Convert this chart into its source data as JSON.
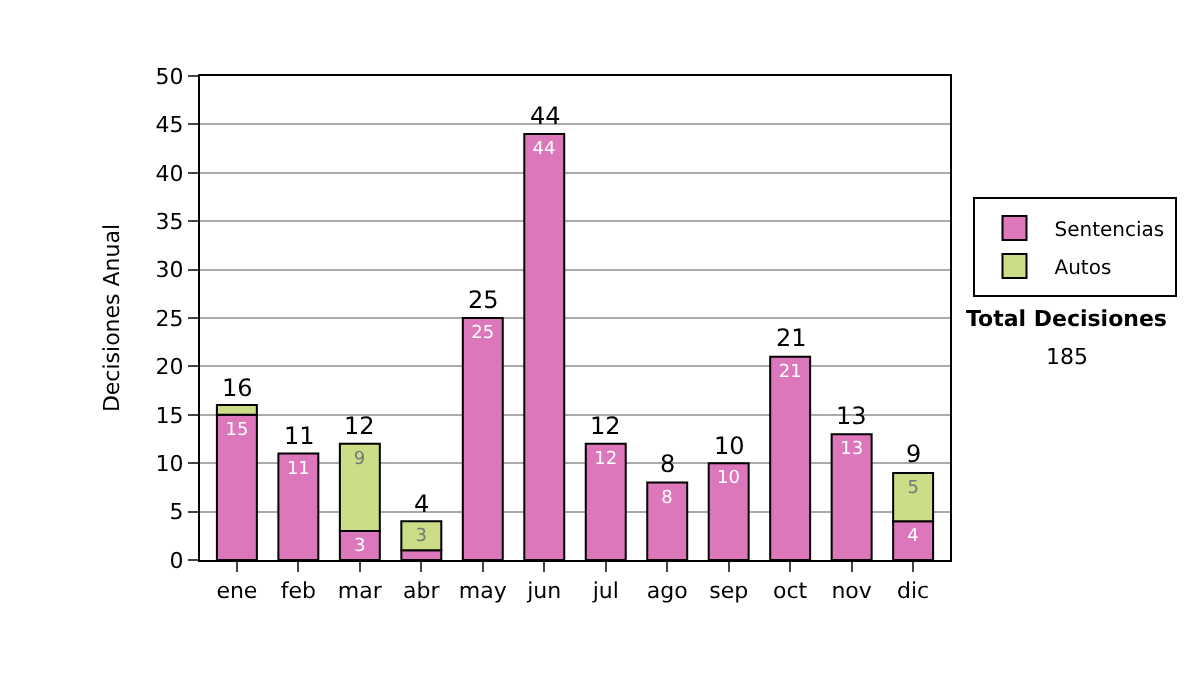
{
  "chart_data": {
    "type": "bar",
    "stacked": true,
    "ylabel": "Decisiones Anual",
    "categories": [
      "ene",
      "feb",
      "mar",
      "abr",
      "may",
      "jun",
      "jul",
      "ago",
      "sep",
      "oct",
      "nov",
      "dic"
    ],
    "series": [
      {
        "name": "Sentencias",
        "color": "#dd77bb",
        "values": [
          15,
          11,
          3,
          1,
          25,
          44,
          12,
          8,
          10,
          21,
          13,
          4
        ],
        "value_labels": [
          "15",
          "11",
          "3",
          null,
          "25",
          "44",
          "12",
          "8",
          "10",
          "21",
          "13",
          "4"
        ]
      },
      {
        "name": "Autos",
        "color": "#ccdd88",
        "values": [
          1,
          null,
          9,
          3,
          null,
          null,
          null,
          null,
          null,
          null,
          null,
          5
        ],
        "value_labels": [
          null,
          null,
          "9",
          "3",
          null,
          null,
          null,
          null,
          null,
          null,
          null,
          "5"
        ]
      }
    ],
    "totals": [
      "16",
      "11",
      "12",
      "4",
      "25",
      "44",
      "12",
      "8",
      "10",
      "21",
      "13",
      "9"
    ],
    "ylim": [
      0,
      50
    ],
    "yticks": [
      0,
      5,
      10,
      15,
      20,
      25,
      30,
      35,
      40,
      45,
      50
    ],
    "grid": "y",
    "legend": "right",
    "annotations": [
      "Total Decisiones",
      "185"
    ]
  }
}
